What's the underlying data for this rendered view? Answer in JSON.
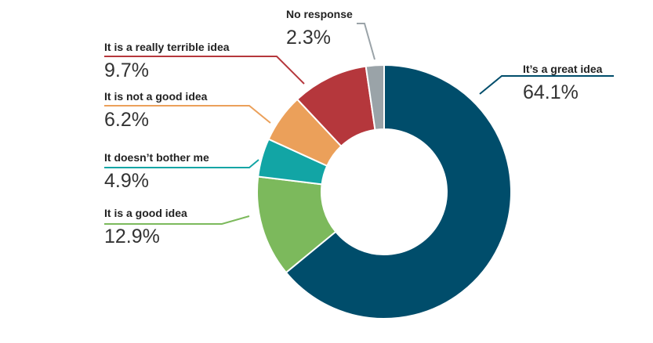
{
  "chart_data": {
    "type": "donut",
    "categories": [
      "It’s a great idea",
      "It is a good idea",
      "It doesn’t bother me",
      "It is not a good idea",
      "It is a really terrible idea",
      "No response"
    ],
    "values": [
      64.1,
      12.9,
      4.9,
      6.2,
      9.7,
      2.3
    ],
    "value_labels": [
      "64.1%",
      "12.9%",
      "4.9%",
      "6.2%",
      "9.7%",
      "2.3%"
    ],
    "colors": [
      "#004d6b",
      "#7cb95c",
      "#12a5a5",
      "#eba05a",
      "#b5373c",
      "#9aa3a8"
    ]
  }
}
